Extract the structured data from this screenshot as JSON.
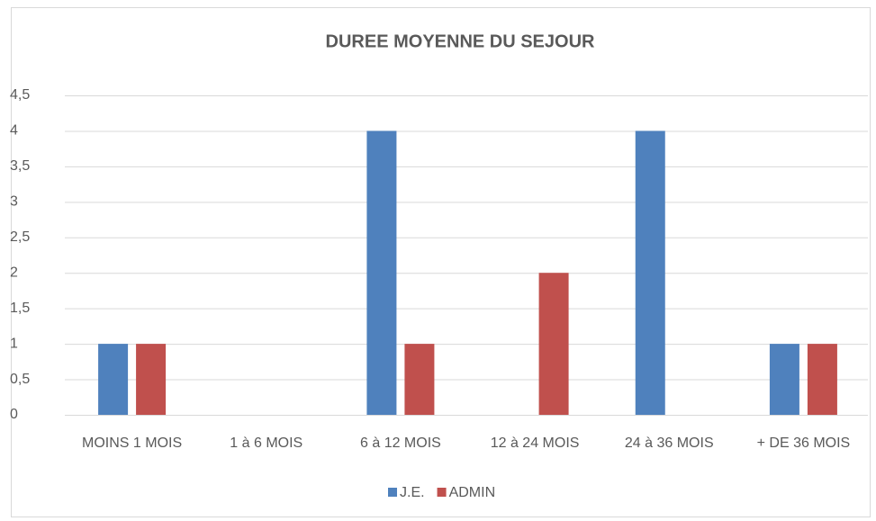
{
  "chart_data": {
    "type": "bar",
    "title": "DUREE MOYENNE DU SEJOUR",
    "categories": [
      "MOINS 1 MOIS",
      "1 à 6 MOIS",
      "6 à 12 MOIS",
      "12 à 24 MOIS",
      "24 à 36 MOIS",
      "+ DE 36 MOIS"
    ],
    "series": [
      {
        "name": "J.E.",
        "color": "#4f81bd",
        "values": [
          1,
          0,
          4,
          0,
          4,
          1
        ]
      },
      {
        "name": "ADMIN",
        "color": "#c0504d",
        "values": [
          1,
          0,
          1,
          2,
          0,
          1
        ]
      }
    ],
    "ylim": [
      0,
      4.5
    ],
    "yticks": [
      0,
      {
        "value": 0.5,
        "label": "0,5"
      },
      1,
      {
        "value": 1.5,
        "label": "1,5"
      },
      2,
      {
        "value": 2.5,
        "label": "2,5"
      },
      3,
      {
        "value": 3.5,
        "label": "3,5"
      },
      4,
      {
        "value": 4.5,
        "label": "4,5"
      }
    ],
    "grid": true,
    "legend": "bottom"
  }
}
